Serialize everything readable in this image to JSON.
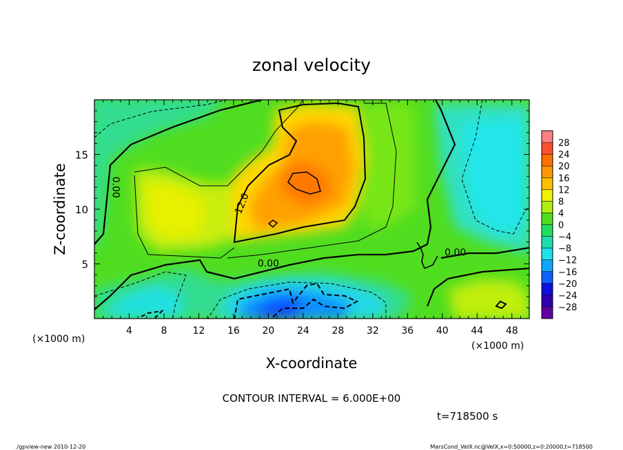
{
  "chart_data": {
    "type": "heatmap",
    "title": "zonal velocity",
    "xlabel": "X-coordinate",
    "ylabel": "Z-coordinate",
    "x_unit_label": "(×1000 m)",
    "y_unit_label": "(×1000 m)",
    "xlim": [
      0,
      50
    ],
    "ylim": [
      0,
      20
    ],
    "x_ticks": [
      4,
      8,
      12,
      16,
      20,
      24,
      28,
      32,
      36,
      40,
      44,
      48
    ],
    "y_ticks": [
      5,
      10,
      15
    ],
    "colorbar": {
      "levels": [
        28,
        24,
        20,
        16,
        12,
        8,
        4,
        0,
        -4,
        -8,
        -12,
        -16,
        -20,
        -24,
        -28
      ],
      "colors": [
        "#ff8080",
        "#ff5030",
        "#ff7000",
        "#ff9800",
        "#ffc000",
        "#f0f000",
        "#b0ee10",
        "#50dd20",
        "#20dd60",
        "#20ddb0",
        "#20e0e8",
        "#10a8ff",
        "#1060ff",
        "#1010e0",
        "#3000b0",
        "#6000a0"
      ]
    },
    "contour_labels": [
      {
        "text": "0.00",
        "x": 2.4,
        "y": 12.0,
        "rotation": 90
      },
      {
        "text": "12.0",
        "x": 17.0,
        "y": 10.5,
        "rotation": -68
      },
      {
        "text": "0.00",
        "x": 20.0,
        "y": 5.0,
        "rotation": 0
      },
      {
        "text": "0.00",
        "x": 41.5,
        "y": 6.0,
        "rotation": 0
      }
    ],
    "contour_interval_text": "CONTOUR INTERVAL = 6.000E+00",
    "time_text": "t=718500  s"
  },
  "footer": {
    "left": "./gpview-new   2010-12-20",
    "right": "MarsCond_VelX.nc@VelX,x=0:50000,z=0:20000,t=718500"
  }
}
